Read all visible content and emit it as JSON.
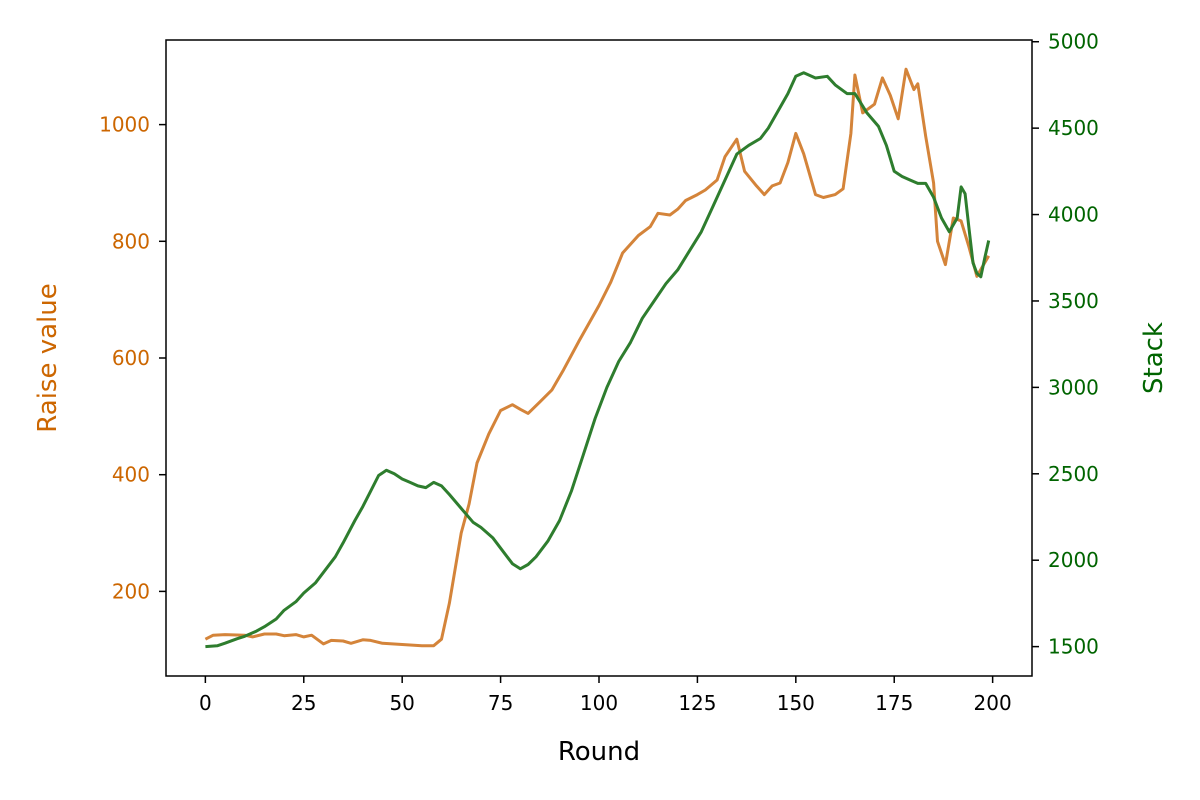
{
  "chart_data": {
    "type": "line",
    "xlabel": "Round",
    "ylabel_left": "Raise value",
    "ylabel_right": "Stack",
    "xlim": [
      -10,
      210
    ],
    "ylim_left": [
      55,
      1145
    ],
    "ylim_right": [
      1330,
      5010
    ],
    "xticks": [
      0,
      25,
      50,
      75,
      100,
      125,
      150,
      175,
      200
    ],
    "yticks_left": [
      200,
      400,
      600,
      800,
      1000
    ],
    "yticks_right": [
      1500,
      2000,
      2500,
      3000,
      3500,
      4000,
      4500,
      5000
    ],
    "grid": false,
    "colors": {
      "left": "#cc6600",
      "right": "#006400",
      "raise_line": "#d4843a",
      "stack_line": "#2e7d2e"
    },
    "series": [
      {
        "name": "Raise value",
        "axis": "left",
        "points": [
          [
            0,
            118
          ],
          [
            2,
            125
          ],
          [
            5,
            126
          ],
          [
            10,
            125
          ],
          [
            12,
            122
          ],
          [
            15,
            127
          ],
          [
            18,
            127
          ],
          [
            20,
            124
          ],
          [
            23,
            126
          ],
          [
            25,
            122
          ],
          [
            27,
            125
          ],
          [
            30,
            110
          ],
          [
            32,
            116
          ],
          [
            35,
            115
          ],
          [
            37,
            111
          ],
          [
            40,
            117
          ],
          [
            42,
            116
          ],
          [
            45,
            111
          ],
          [
            50,
            109
          ],
          [
            55,
            107
          ],
          [
            58,
            107
          ],
          [
            60,
            118
          ],
          [
            62,
            180
          ],
          [
            65,
            300
          ],
          [
            67,
            350
          ],
          [
            69,
            420
          ],
          [
            72,
            470
          ],
          [
            75,
            510
          ],
          [
            78,
            520
          ],
          [
            80,
            512
          ],
          [
            82,
            505
          ],
          [
            85,
            525
          ],
          [
            88,
            545
          ],
          [
            91,
            580
          ],
          [
            95,
            630
          ],
          [
            100,
            690
          ],
          [
            103,
            730
          ],
          [
            106,
            780
          ],
          [
            110,
            810
          ],
          [
            113,
            825
          ],
          [
            115,
            848
          ],
          [
            118,
            845
          ],
          [
            120,
            855
          ],
          [
            122,
            870
          ],
          [
            125,
            880
          ],
          [
            127,
            888
          ],
          [
            130,
            905
          ],
          [
            132,
            945
          ],
          [
            135,
            975
          ],
          [
            137,
            920
          ],
          [
            140,
            895
          ],
          [
            142,
            880
          ],
          [
            144,
            895
          ],
          [
            146,
            900
          ],
          [
            148,
            935
          ],
          [
            150,
            985
          ],
          [
            152,
            950
          ],
          [
            155,
            880
          ],
          [
            157,
            875
          ],
          [
            160,
            880
          ],
          [
            162,
            890
          ],
          [
            164,
            985
          ],
          [
            165,
            1085
          ],
          [
            167,
            1020
          ],
          [
            170,
            1035
          ],
          [
            172,
            1080
          ],
          [
            174,
            1050
          ],
          [
            176,
            1010
          ],
          [
            178,
            1095
          ],
          [
            180,
            1060
          ],
          [
            181,
            1070
          ],
          [
            183,
            980
          ],
          [
            185,
            900
          ],
          [
            186,
            800
          ],
          [
            188,
            760
          ],
          [
            190,
            840
          ],
          [
            192,
            835
          ],
          [
            194,
            790
          ],
          [
            196,
            740
          ],
          [
            199,
            775
          ]
        ]
      },
      {
        "name": "Stack",
        "axis": "right",
        "points": [
          [
            0,
            1500
          ],
          [
            3,
            1505
          ],
          [
            5,
            1520
          ],
          [
            8,
            1545
          ],
          [
            10,
            1560
          ],
          [
            13,
            1590
          ],
          [
            15,
            1615
          ],
          [
            18,
            1660
          ],
          [
            20,
            1710
          ],
          [
            23,
            1760
          ],
          [
            25,
            1810
          ],
          [
            28,
            1870
          ],
          [
            30,
            1930
          ],
          [
            33,
            2020
          ],
          [
            35,
            2100
          ],
          [
            38,
            2230
          ],
          [
            40,
            2310
          ],
          [
            42,
            2400
          ],
          [
            44,
            2490
          ],
          [
            46,
            2520
          ],
          [
            48,
            2500
          ],
          [
            50,
            2470
          ],
          [
            52,
            2450
          ],
          [
            54,
            2430
          ],
          [
            56,
            2420
          ],
          [
            58,
            2450
          ],
          [
            60,
            2430
          ],
          [
            62,
            2380
          ],
          [
            65,
            2300
          ],
          [
            68,
            2220
          ],
          [
            70,
            2190
          ],
          [
            73,
            2130
          ],
          [
            76,
            2040
          ],
          [
            78,
            1980
          ],
          [
            80,
            1950
          ],
          [
            82,
            1975
          ],
          [
            84,
            2020
          ],
          [
            87,
            2110
          ],
          [
            90,
            2230
          ],
          [
            93,
            2400
          ],
          [
            96,
            2610
          ],
          [
            99,
            2820
          ],
          [
            102,
            3000
          ],
          [
            105,
            3150
          ],
          [
            108,
            3260
          ],
          [
            111,
            3400
          ],
          [
            114,
            3500
          ],
          [
            117,
            3600
          ],
          [
            120,
            3680
          ],
          [
            123,
            3790
          ],
          [
            126,
            3900
          ],
          [
            129,
            4050
          ],
          [
            132,
            4200
          ],
          [
            135,
            4350
          ],
          [
            138,
            4400
          ],
          [
            141,
            4440
          ],
          [
            143,
            4500
          ],
          [
            146,
            4620
          ],
          [
            148,
            4700
          ],
          [
            150,
            4800
          ],
          [
            152,
            4820
          ],
          [
            155,
            4790
          ],
          [
            158,
            4800
          ],
          [
            160,
            4750
          ],
          [
            163,
            4700
          ],
          [
            165,
            4700
          ],
          [
            168,
            4590
          ],
          [
            171,
            4510
          ],
          [
            173,
            4400
          ],
          [
            175,
            4250
          ],
          [
            177,
            4220
          ],
          [
            179,
            4200
          ],
          [
            181,
            4180
          ],
          [
            183,
            4180
          ],
          [
            185,
            4100
          ],
          [
            187,
            3980
          ],
          [
            189,
            3900
          ],
          [
            191,
            3980
          ],
          [
            192,
            4160
          ],
          [
            193,
            4120
          ],
          [
            194,
            3920
          ],
          [
            195,
            3720
          ],
          [
            196,
            3660
          ],
          [
            197,
            3640
          ],
          [
            198,
            3750
          ],
          [
            199,
            3850
          ]
        ]
      }
    ]
  }
}
